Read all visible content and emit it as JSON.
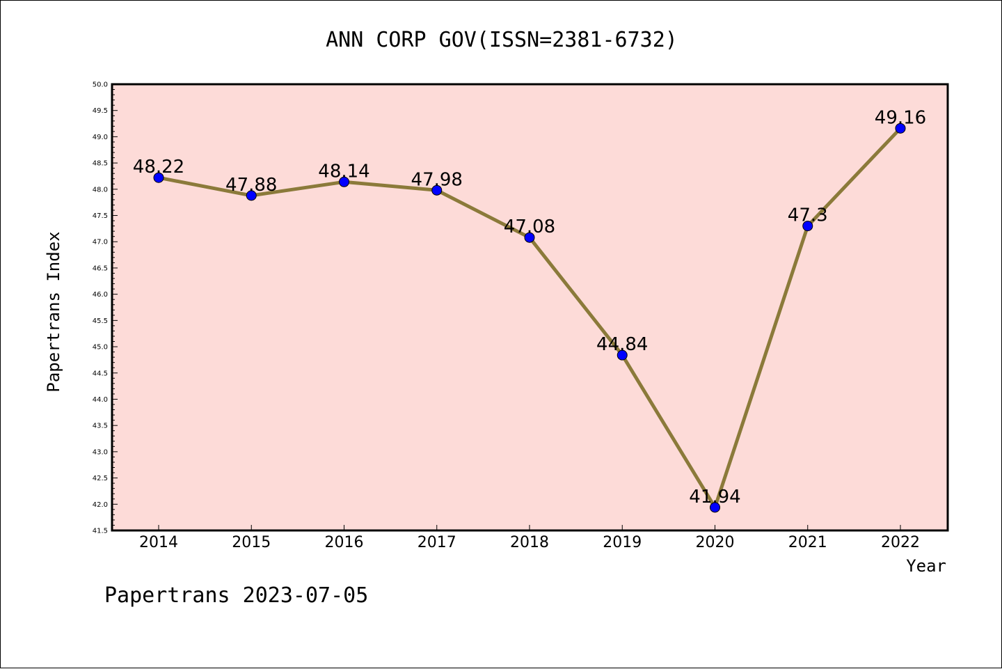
{
  "chart_data": {
    "type": "line",
    "title": "ANN CORP GOV(ISSN=2381-6732)",
    "xlabel": "Year",
    "ylabel": "Papertrans Index",
    "categories": [
      "2014",
      "2015",
      "2016",
      "2017",
      "2018",
      "2019",
      "2020",
      "2021",
      "2022"
    ],
    "series": [
      {
        "values": [
          48.22,
          47.88,
          48.14,
          47.98,
          47.08,
          44.84,
          41.94,
          47.3,
          49.16
        ],
        "data_labels": [
          "48.22",
          "47.88",
          "48.14",
          "47.98",
          "47.08",
          "44.84",
          "41.94",
          "47.3",
          "49.16"
        ]
      }
    ],
    "ylim": [
      41.5,
      50.0
    ],
    "yticks": [
      "41.5",
      "42.0",
      "42.5",
      "43.0",
      "43.5",
      "44.0",
      "44.5",
      "45.0",
      "45.5",
      "46.0",
      "46.5",
      "47.0",
      "47.5",
      "48.0",
      "48.5",
      "49.0",
      "49.5",
      "50.0"
    ],
    "grid": false,
    "line_color": "#8b7a3a",
    "marker_color": "#0000ff",
    "plot_background": "#fddbd8"
  },
  "footer": {
    "text": "Papertrans 2023-07-05"
  }
}
